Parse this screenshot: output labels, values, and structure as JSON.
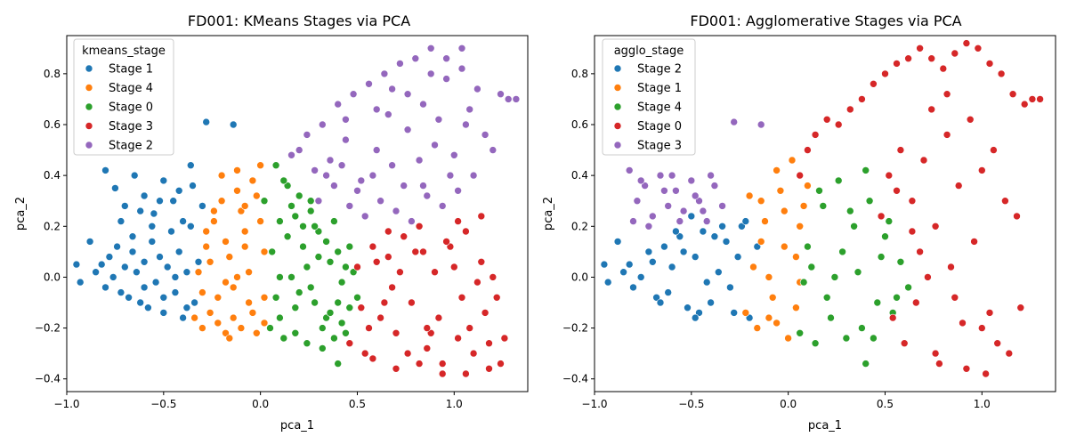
{
  "figure": {
    "background": "#ffffff"
  },
  "chart_data": [
    {
      "type": "scatter",
      "title": "FD001: KMeans Stages via PCA",
      "xlabel": "pca_1",
      "ylabel": "pca_2",
      "xlim": [
        -1.0,
        1.38
      ],
      "ylim": [
        -0.45,
        0.95
      ],
      "xticks": [
        -1.0,
        -0.5,
        0.0,
        0.5,
        1.0
      ],
      "xtick_labels": [
        "−1.0",
        "−0.5",
        "0.0",
        "0.5",
        "1.0"
      ],
      "yticks": [
        -0.4,
        -0.2,
        0.0,
        0.2,
        0.4,
        0.6,
        0.8
      ],
      "ytick_labels": [
        "−0.4",
        "−0.2",
        "0.0",
        "0.2",
        "0.4",
        "0.6",
        "0.8"
      ],
      "grid": false,
      "legend": {
        "title": "kmeans_stage",
        "placement": "upper-left",
        "entries": [
          "Stage 1",
          "Stage 4",
          "Stage 0",
          "Stage 3",
          "Stage 2"
        ]
      },
      "series": [
        {
          "name": "Stage 1",
          "color": "#1f77b4",
          "x": [
            -0.95,
            -0.93,
            -0.88,
            -0.85,
            -0.82,
            -0.8,
            -0.78,
            -0.76,
            -0.74,
            -0.72,
            -0.7,
            -0.68,
            -0.66,
            -0.64,
            -0.62,
            -0.6,
            -0.58,
            -0.56,
            -0.54,
            -0.52,
            -0.5,
            -0.48,
            -0.46,
            -0.44,
            -0.42,
            -0.4,
            -0.38,
            -0.36,
            -0.34,
            -0.32,
            -0.3,
            -0.28,
            -0.8,
            -0.75,
            -0.7,
            -0.65,
            -0.6,
            -0.55,
            -0.5,
            -0.45,
            -0.4,
            -0.35,
            -0.3,
            -0.72,
            -0.62,
            -0.52,
            -0.42,
            -0.36,
            -0.6,
            -0.5,
            -0.44,
            -0.38,
            -0.66,
            -0.56,
            -0.28,
            -0.14
          ],
          "y": [
            0.05,
            -0.02,
            0.14,
            0.02,
            0.05,
            -0.04,
            0.08,
            0.0,
            0.12,
            -0.06,
            0.04,
            -0.08,
            0.1,
            0.02,
            -0.1,
            0.06,
            -0.12,
            0.14,
            -0.02,
            0.08,
            -0.14,
            0.04,
            0.18,
            -0.06,
            0.1,
            -0.16,
            0.02,
            0.2,
            -0.1,
            0.06,
            -0.2,
            0.12,
            0.42,
            0.35,
            0.28,
            0.4,
            0.32,
            0.25,
            0.38,
            0.3,
            0.22,
            0.36,
            0.28,
            0.22,
            0.26,
            0.3,
            0.34,
            0.44,
            -0.04,
            -0.08,
            0.0,
            -0.12,
            0.16,
            0.2,
            0.61,
            0.6
          ]
        },
        {
          "name": "Stage 4",
          "color": "#ff7f0e",
          "x": [
            -0.34,
            -0.32,
            -0.3,
            -0.28,
            -0.26,
            -0.24,
            -0.22,
            -0.2,
            -0.18,
            -0.16,
            -0.14,
            -0.12,
            -0.1,
            -0.08,
            -0.06,
            -0.04,
            -0.02,
            0.0,
            0.02,
            -0.3,
            -0.26,
            -0.22,
            -0.18,
            -0.14,
            -0.1,
            -0.06,
            -0.02,
            0.02,
            -0.24,
            -0.16,
            -0.08,
            0.0,
            -0.2,
            -0.12,
            -0.04,
            -0.28,
            -0.18,
            -0.08,
            0.02,
            -0.12
          ],
          "y": [
            -0.16,
            0.02,
            -0.2,
            0.12,
            -0.14,
            0.22,
            -0.18,
            0.3,
            -0.22,
            0.08,
            -0.16,
            0.34,
            -0.2,
            0.18,
            -0.1,
            0.38,
            -0.22,
            0.44,
            -0.18,
            -0.06,
            0.06,
            -0.08,
            0.14,
            -0.04,
            0.26,
            0.02,
            0.32,
            0.1,
            0.26,
            -0.24,
            0.12,
            0.22,
            0.4,
            0.0,
            -0.14,
            0.18,
            -0.02,
            0.28,
            -0.08,
            0.42
          ]
        },
        {
          "name": "Stage 0",
          "color": "#2ca02c",
          "x": [
            0.02,
            0.05,
            0.08,
            0.1,
            0.12,
            0.14,
            0.16,
            0.18,
            0.2,
            0.22,
            0.24,
            0.26,
            0.28,
            0.3,
            0.32,
            0.34,
            0.36,
            0.38,
            0.4,
            0.42,
            0.44,
            0.46,
            0.48,
            0.5,
            0.06,
            0.1,
            0.14,
            0.18,
            0.22,
            0.26,
            0.3,
            0.34,
            0.38,
            0.42,
            0.46,
            0.08,
            0.16,
            0.24,
            0.32,
            0.4,
            0.12,
            0.2,
            0.28,
            0.36,
            0.44,
            0.1,
            0.18,
            0.26,
            0.4
          ],
          "y": [
            0.3,
            -0.2,
            0.44,
            0.22,
            -0.24,
            0.36,
            0.0,
            -0.22,
            0.32,
            0.12,
            -0.26,
            0.26,
            -0.1,
            0.18,
            -0.28,
            0.14,
            0.06,
            -0.24,
            0.1,
            -0.18,
            0.04,
            -0.12,
            0.02,
            -0.08,
            0.1,
            0.0,
            0.16,
            -0.12,
            0.2,
            -0.04,
            0.08,
            -0.16,
            0.22,
            -0.02,
            0.12,
            -0.08,
            0.28,
            0.04,
            -0.2,
            -0.1,
            0.38,
            -0.06,
            0.2,
            -0.14,
            -0.22,
            -0.16,
            0.24,
            0.3,
            -0.34
          ]
        },
        {
          "name": "Stage 3",
          "color": "#d62728",
          "x": [
            0.46,
            0.5,
            0.54,
            0.58,
            0.62,
            0.66,
            0.7,
            0.74,
            0.78,
            0.82,
            0.86,
            0.9,
            0.94,
            0.98,
            1.02,
            1.06,
            1.1,
            1.14,
            1.18,
            1.22,
            1.26,
            0.52,
            0.6,
            0.68,
            0.76,
            0.84,
            0.92,
            1.0,
            1.08,
            1.16,
            1.24,
            0.56,
            0.64,
            0.72,
            0.8,
            0.88,
            0.96,
            1.04,
            1.12,
            1.2,
            0.58,
            0.7,
            0.82,
            0.94,
            1.06,
            1.18,
            0.66,
            0.86,
            1.02,
            1.14
          ],
          "y": [
            -0.26,
            0.04,
            -0.3,
            0.12,
            -0.16,
            0.08,
            -0.22,
            0.16,
            -0.1,
            0.2,
            -0.28,
            0.02,
            -0.34,
            0.12,
            -0.24,
            0.18,
            -0.3,
            0.06,
            -0.36,
            -0.08,
            -0.24,
            -0.12,
            0.06,
            -0.04,
            -0.3,
            0.1,
            -0.16,
            0.04,
            -0.2,
            -0.14,
            -0.34,
            -0.2,
            -0.1,
            0.02,
            0.1,
            -0.22,
            0.14,
            -0.08,
            -0.02,
            0.0,
            -0.32,
            -0.36,
            -0.34,
            -0.38,
            -0.38,
            -0.26,
            0.18,
            -0.2,
            0.22,
            0.24
          ]
        },
        {
          "name": "Stage 2",
          "color": "#9467bd",
          "x": [
            0.16,
            0.2,
            0.24,
            0.28,
            0.32,
            0.36,
            0.4,
            0.44,
            0.48,
            0.52,
            0.56,
            0.6,
            0.64,
            0.68,
            0.72,
            0.76,
            0.8,
            0.84,
            0.88,
            0.92,
            0.96,
            1.0,
            1.04,
            1.08,
            1.12,
            1.16,
            1.2,
            1.24,
            1.28,
            1.32,
            0.3,
            0.38,
            0.46,
            0.54,
            0.62,
            0.7,
            0.78,
            0.86,
            0.94,
            1.02,
            1.1,
            0.34,
            0.42,
            0.5,
            0.58,
            0.66,
            0.74,
            0.82,
            0.9,
            0.98,
            1.06,
            0.44,
            0.6,
            0.76,
            0.88,
            0.96,
            1.04,
            0.68,
            0.84
          ],
          "y": [
            0.48,
            0.5,
            0.56,
            0.42,
            0.6,
            0.46,
            0.68,
            0.54,
            0.72,
            0.38,
            0.76,
            0.5,
            0.8,
            0.44,
            0.84,
            0.58,
            0.86,
            0.36,
            0.9,
            0.62,
            0.78,
            0.48,
            0.82,
            0.66,
            0.74,
            0.56,
            0.5,
            0.72,
            0.7,
            0.7,
            0.3,
            0.36,
            0.28,
            0.24,
            0.3,
            0.26,
            0.22,
            0.32,
            0.28,
            0.34,
            0.4,
            0.4,
            0.44,
            0.34,
            0.4,
            0.64,
            0.36,
            0.46,
            0.52,
            0.4,
            0.6,
            0.62,
            0.66,
            0.72,
            0.8,
            0.86,
            0.9,
            0.74,
            0.68
          ]
        }
      ]
    },
    {
      "type": "scatter",
      "title": "FD001: Agglomerative Stages via PCA",
      "xlabel": "pca_1",
      "ylabel": "pca_2",
      "xlim": [
        -1.0,
        1.38
      ],
      "ylim": [
        -0.45,
        0.95
      ],
      "xticks": [
        -1.0,
        -0.5,
        0.0,
        0.5,
        1.0
      ],
      "xtick_labels": [
        "−1.0",
        "−0.5",
        "0.0",
        "0.5",
        "1.0"
      ],
      "yticks": [
        -0.4,
        -0.2,
        0.0,
        0.2,
        0.4,
        0.6,
        0.8
      ],
      "ytick_labels": [
        "−0.4",
        "−0.2",
        "0.0",
        "0.2",
        "0.4",
        "0.6",
        "0.8"
      ],
      "grid": false,
      "legend": {
        "title": "agglo_stage",
        "placement": "upper-left",
        "entries": [
          "Stage 2",
          "Stage 1",
          "Stage 4",
          "Stage 0",
          "Stage 3"
        ]
      },
      "series": [
        {
          "name": "Stage 2",
          "color": "#1f77b4",
          "x": [
            -0.95,
            -0.93,
            -0.88,
            -0.85,
            -0.82,
            -0.8,
            -0.76,
            -0.72,
            -0.68,
            -0.64,
            -0.6,
            -0.56,
            -0.52,
            -0.48,
            -0.44,
            -0.4,
            -0.36,
            -0.32,
            -0.28,
            -0.24,
            -0.2,
            -0.16,
            -0.7,
            -0.62,
            -0.54,
            -0.46,
            -0.38,
            -0.3,
            -0.22,
            -0.58,
            -0.5,
            -0.42,
            -0.34,
            -0.26,
            -0.66,
            -0.48
          ],
          "y": [
            0.05,
            -0.02,
            0.14,
            0.02,
            0.05,
            -0.04,
            0.0,
            0.1,
            -0.08,
            0.12,
            0.04,
            0.16,
            -0.12,
            0.08,
            0.18,
            -0.1,
            0.02,
            0.14,
            -0.14,
            0.2,
            -0.16,
            0.12,
            0.06,
            -0.06,
            0.1,
            -0.14,
            0.16,
            -0.04,
            0.22,
            0.18,
            0.24,
            -0.02,
            0.2,
            0.08,
            -0.1,
            -0.16
          ]
        },
        {
          "name": "Stage 1",
          "color": "#ff7f0e",
          "x": [
            -0.22,
            -0.18,
            -0.14,
            -0.1,
            -0.06,
            -0.02,
            0.02,
            0.06,
            0.1,
            -0.16,
            -0.12,
            -0.08,
            -0.04,
            0.0,
            0.04,
            0.08,
            -0.2,
            -0.1,
            -0.02,
            0.06,
            -0.14,
            -0.06,
            0.04
          ],
          "y": [
            -0.14,
            0.04,
            0.3,
            -0.16,
            0.42,
            0.12,
            0.46,
            0.2,
            0.36,
            -0.2,
            0.22,
            -0.08,
            0.34,
            -0.24,
            0.08,
            0.28,
            0.32,
            0.0,
            0.26,
            -0.02,
            0.14,
            -0.18,
            -0.12
          ]
        },
        {
          "name": "Stage 4",
          "color": "#2ca02c",
          "x": [
            0.06,
            0.1,
            0.14,
            0.18,
            0.22,
            0.26,
            0.3,
            0.34,
            0.38,
            0.42,
            0.46,
            0.5,
            0.54,
            0.58,
            0.62,
            0.12,
            0.2,
            0.28,
            0.36,
            0.44,
            0.52,
            0.16,
            0.24,
            0.32,
            0.4,
            0.48,
            0.08,
            0.56,
            0.4
          ],
          "y": [
            -0.22,
            0.12,
            -0.26,
            0.28,
            -0.16,
            0.38,
            -0.24,
            0.2,
            -0.2,
            0.3,
            -0.1,
            0.16,
            -0.14,
            0.06,
            -0.04,
            0.04,
            -0.08,
            0.1,
            0.02,
            -0.24,
            0.22,
            0.34,
            0.0,
            0.26,
            0.42,
            0.08,
            -0.02,
            -0.08,
            -0.34
          ]
        },
        {
          "name": "Stage 0",
          "color": "#d62728",
          "x": [
            0.06,
            0.1,
            0.14,
            0.2,
            0.26,
            0.32,
            0.38,
            0.44,
            0.5,
            0.56,
            0.62,
            0.68,
            0.74,
            0.8,
            0.86,
            0.92,
            0.98,
            1.04,
            1.1,
            1.16,
            1.22,
            1.26,
            1.3,
            0.52,
            0.58,
            0.64,
            0.7,
            0.76,
            0.82,
            0.88,
            0.94,
            1.0,
            1.06,
            1.12,
            1.18,
            0.6,
            0.68,
            0.76,
            0.84,
            0.92,
            1.0,
            1.08,
            0.66,
            0.78,
            0.9,
            1.02,
            1.14,
            0.72,
            0.86,
            0.96,
            1.04,
            0.48,
            0.56,
            0.74,
            0.82,
            1.2,
            0.54,
            0.64
          ],
          "y": [
            0.4,
            0.5,
            0.56,
            0.62,
            0.6,
            0.66,
            0.7,
            0.76,
            0.8,
            0.84,
            0.86,
            0.9,
            0.86,
            0.82,
            0.88,
            0.92,
            0.9,
            0.84,
            0.8,
            0.72,
            0.68,
            0.7,
            0.7,
            0.4,
            0.5,
            0.3,
            0.46,
            0.2,
            0.56,
            0.36,
            0.62,
            0.42,
            0.5,
            0.3,
            0.24,
            -0.26,
            0.1,
            -0.3,
            0.04,
            -0.36,
            -0.2,
            -0.26,
            -0.1,
            -0.34,
            -0.18,
            -0.38,
            -0.3,
            0.0,
            -0.08,
            0.14,
            -0.14,
            0.24,
            0.34,
            0.66,
            0.72,
            -0.12,
            -0.16,
            0.18
          ]
        },
        {
          "name": "Stage 3",
          "color": "#9467bd",
          "x": [
            -0.82,
            -0.78,
            -0.74,
            -0.7,
            -0.66,
            -0.62,
            -0.58,
            -0.54,
            -0.5,
            -0.46,
            -0.42,
            -0.38,
            -0.34,
            -0.8,
            -0.72,
            -0.64,
            -0.56,
            -0.48,
            -0.4,
            -0.28,
            -0.14,
            -0.76,
            -0.6,
            -0.44
          ],
          "y": [
            0.42,
            0.3,
            0.36,
            0.24,
            0.4,
            0.28,
            0.34,
            0.26,
            0.38,
            0.3,
            0.22,
            0.36,
            0.28,
            0.22,
            0.2,
            0.34,
            0.22,
            0.32,
            0.4,
            0.61,
            0.6,
            0.38,
            0.4,
            0.26
          ]
        }
      ]
    }
  ]
}
